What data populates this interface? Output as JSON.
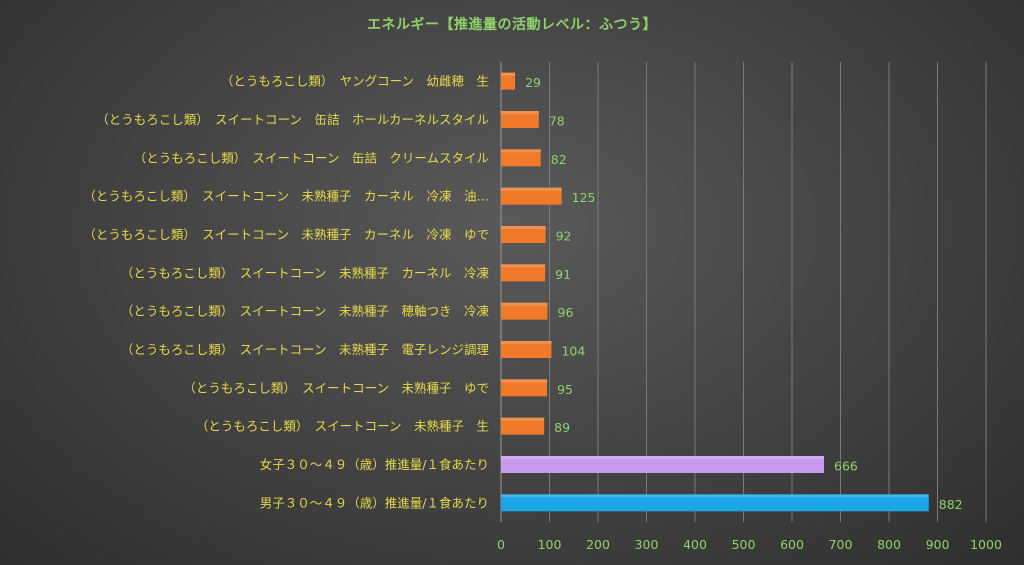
{
  "chart_data": {
    "type": "bar",
    "orientation": "horizontal",
    "title": "エネルギー【推進量の活動レベル：ふつう】",
    "xlim": [
      0,
      1000
    ],
    "xticks": [
      0,
      100,
      200,
      300,
      400,
      500,
      600,
      700,
      800,
      900,
      1000
    ],
    "grid": true,
    "legend": "none",
    "categories": [
      "（とうもろこし類）　ヤングコーン　幼雌穂　生",
      "（とうもろこし類）　スイートコーン　缶詰　ホールカーネルスタイル",
      "（とうもろこし類）　スイートコーン　缶詰　クリームスタイル",
      "（とうもろこし類）　スイートコーン　未熟種子　カーネル　冷凍　油…",
      "（とうもろこし類）　スイートコーン　未熟種子　カーネル　冷凍　ゆで",
      "（とうもろこし類）　スイートコーン　未熟種子　カーネル　冷凍",
      "（とうもろこし類）　スイートコーン　未熟種子　穂軸つき　冷凍",
      "（とうもろこし類）　スイートコーン　未熟種子　電子レンジ調理",
      "（とうもろこし類）　スイートコーン　未熟種子　ゆで",
      "（とうもろこし類）　スイートコーン　未熟種子　生",
      "女子３０～４９（歳）推進量/１食あたり",
      "男子３０～４９（歳）推進量/１食あたり"
    ],
    "values": [
      29,
      78,
      82,
      125,
      92,
      91,
      96,
      104,
      95,
      89,
      666,
      882
    ],
    "colors": [
      "#f07a2a",
      "#f07a2a",
      "#f07a2a",
      "#f07a2a",
      "#f07a2a",
      "#f07a2a",
      "#f07a2a",
      "#f07a2a",
      "#f07a2a",
      "#f07a2a",
      "#c79af0",
      "#1aa6e6"
    ]
  }
}
